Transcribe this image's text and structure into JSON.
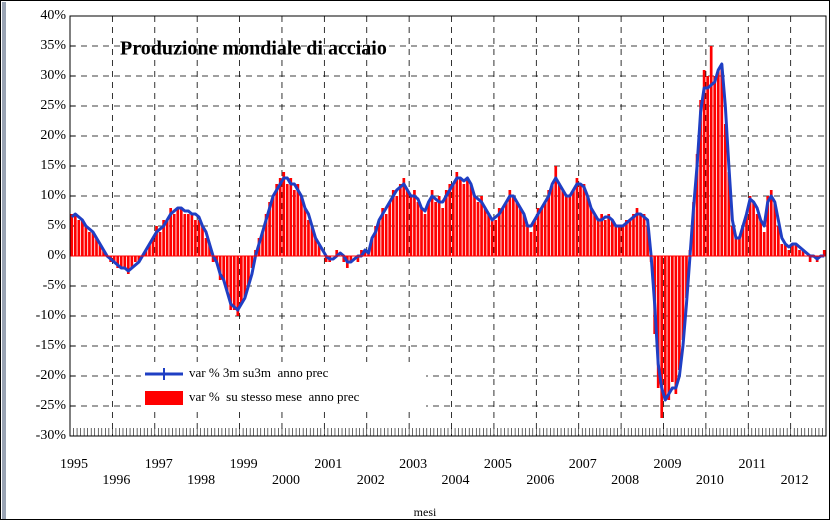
{
  "chart_data": {
    "type": "bar",
    "title": "Produzione mondiale di acciaio",
    "x_label": "mesi",
    "categories": [
      "1995",
      null,
      null,
      null,
      null,
      null,
      null,
      null,
      null,
      null,
      null,
      null,
      "1996",
      null,
      null,
      null,
      null,
      null,
      null,
      null,
      null,
      null,
      null,
      null,
      "1997",
      null,
      null,
      null,
      null,
      null,
      null,
      null,
      null,
      null,
      null,
      null,
      "1998",
      null,
      null,
      null,
      null,
      null,
      null,
      null,
      null,
      null,
      null,
      null,
      "1999",
      null,
      null,
      null,
      null,
      null,
      null,
      null,
      null,
      null,
      null,
      null,
      "2000",
      null,
      null,
      null,
      null,
      null,
      null,
      null,
      null,
      null,
      null,
      null,
      "2001",
      null,
      null,
      null,
      null,
      null,
      null,
      null,
      null,
      null,
      null,
      null,
      "2002",
      null,
      null,
      null,
      null,
      null,
      null,
      null,
      null,
      null,
      null,
      null,
      "2003",
      null,
      null,
      null,
      null,
      null,
      null,
      null,
      null,
      null,
      null,
      null,
      "2004",
      null,
      null,
      null,
      null,
      null,
      null,
      null,
      null,
      null,
      null,
      null,
      "2005",
      null,
      null,
      null,
      null,
      null,
      null,
      null,
      null,
      null,
      null,
      null,
      "2006",
      null,
      null,
      null,
      null,
      null,
      null,
      null,
      null,
      null,
      null,
      null,
      "2007",
      null,
      null,
      null,
      null,
      null,
      null,
      null,
      null,
      null,
      null,
      null,
      "2008",
      null,
      null,
      null,
      null,
      null,
      null,
      null,
      null,
      null,
      null,
      null,
      "2009",
      null,
      null,
      null,
      null,
      null,
      null,
      null,
      null,
      null,
      null,
      null,
      "2010",
      null,
      null,
      null,
      null,
      null,
      null,
      null,
      null,
      null,
      null,
      null,
      "2011",
      null,
      null,
      null,
      null,
      null,
      null,
      null,
      null,
      null,
      null,
      null,
      "2012",
      null,
      null,
      null,
      null,
      null,
      null,
      null,
      null,
      null
    ],
    "series": [
      {
        "name": "var % 3m su3m  anno prec",
        "type": "line",
        "color": "#1f3fc4",
        "values": [
          6.5,
          7,
          6.5,
          6,
          5,
          4.5,
          4,
          3,
          2,
          1,
          0,
          -0.5,
          -1,
          -1.5,
          -2,
          -2,
          -2.5,
          -2,
          -1.5,
          -1,
          0,
          1,
          2,
          3,
          4,
          4.5,
          5,
          6,
          7,
          7.5,
          8,
          8,
          7.5,
          7.5,
          7,
          7,
          6.5,
          5,
          4,
          2,
          0,
          -1,
          -3,
          -4,
          -6,
          -8,
          -8.5,
          -9,
          -8,
          -7,
          -5,
          -3,
          0,
          2,
          4,
          6,
          8,
          10,
          11,
          12,
          13,
          13,
          12,
          12,
          11,
          10,
          8,
          7,
          5,
          3,
          2,
          1,
          0,
          -0.5,
          -0.5,
          0,
          0.5,
          0,
          -1,
          -1,
          -0.5,
          0,
          0,
          1,
          0.5,
          3,
          4,
          6,
          7,
          8,
          9,
          10,
          11,
          11.5,
          12,
          11,
          10,
          10,
          9.5,
          8,
          7.5,
          9,
          10,
          9.5,
          9,
          9,
          10,
          11,
          12,
          13,
          13,
          12.5,
          13,
          12,
          10,
          9.5,
          9,
          8,
          7,
          6,
          6.5,
          7,
          8,
          9,
          10,
          10,
          9,
          8,
          7,
          5,
          5,
          6,
          7,
          8,
          9,
          10,
          12,
          13,
          12,
          11,
          10,
          10,
          11,
          12,
          12,
          11.5,
          10,
          8,
          7,
          6,
          6,
          6.5,
          6.5,
          6,
          5,
          5,
          5,
          5.5,
          6,
          6.5,
          7,
          7,
          6.5,
          6,
          0,
          -8,
          -18,
          -22,
          -24,
          -23,
          -22,
          -22,
          -20,
          -15,
          -8,
          0,
          8,
          15,
          24,
          28,
          28,
          28.5,
          29,
          31,
          32,
          25,
          15,
          6,
          3,
          3,
          5,
          7,
          9.5,
          9,
          8,
          6,
          5,
          9,
          10,
          9,
          6,
          3,
          2,
          1.5,
          2,
          2,
          1.5,
          1,
          0.5,
          0,
          0,
          -0.5,
          0,
          0
        ]
      },
      {
        "name": "var %  su stesso mese  anno prec",
        "type": "bar",
        "color": "#ff0000",
        "values": [
          7,
          7,
          6,
          6,
          5,
          4,
          4,
          3,
          2,
          1,
          0,
          -1,
          -1,
          -2,
          -2,
          -2,
          -3,
          -2,
          -1,
          -1,
          0,
          1,
          2,
          3,
          5,
          4,
          6,
          6,
          8,
          7,
          8,
          8,
          7,
          7,
          7,
          6,
          6,
          5,
          3,
          2,
          -1,
          -1,
          -4,
          -4,
          -6,
          -9,
          -9,
          -10,
          -8,
          -7,
          -5,
          -2,
          1,
          3,
          4,
          7,
          9,
          10,
          12,
          13,
          14,
          12,
          13,
          11,
          12,
          10,
          8,
          6,
          5,
          3,
          2,
          0,
          -1,
          -1,
          0,
          1,
          0,
          -1,
          -2,
          -1,
          0,
          -1,
          1,
          1,
          1,
          3,
          5,
          6,
          8,
          7,
          9,
          11,
          10,
          12,
          13,
          11,
          10,
          11,
          9,
          8,
          7,
          9,
          11,
          9,
          10,
          8,
          11,
          12,
          12,
          14,
          13,
          12,
          13,
          12,
          10,
          9,
          10,
          8,
          7,
          6,
          6,
          8,
          8,
          9,
          11,
          10,
          9,
          8,
          7,
          5,
          4,
          6,
          8,
          8,
          9,
          11,
          12,
          15,
          12,
          11,
          10,
          10,
          11,
          13,
          12,
          12,
          10,
          8,
          7,
          6,
          7,
          6,
          7,
          6,
          5,
          5,
          5,
          6,
          6,
          7,
          8,
          7,
          7,
          5,
          -1,
          -13,
          -22,
          -27,
          -24,
          -24,
          -21,
          -23,
          -19,
          -14,
          -7,
          1,
          9,
          17,
          26,
          31,
          30,
          35,
          30,
          31,
          32,
          22,
          14,
          5,
          3,
          3,
          5,
          7,
          10,
          9,
          7,
          6,
          4,
          10,
          11,
          9,
          5,
          2,
          2,
          1,
          2,
          2,
          1,
          1,
          0,
          -1,
          0,
          -1,
          0,
          1
        ]
      }
    ],
    "ylim": [
      -30,
      40
    ],
    "yticks": [
      {
        "value": -30,
        "label": "-30%"
      },
      {
        "value": -25,
        "label": "-25%"
      },
      {
        "value": -20,
        "label": "-20%"
      },
      {
        "value": -15,
        "label": "-15%"
      },
      {
        "value": -10,
        "label": "-10%"
      },
      {
        "value": -5,
        "label": "-5%"
      },
      {
        "value": 0,
        "label": "0%"
      },
      {
        "value": 5,
        "label": "5%"
      },
      {
        "value": 10,
        "label": "10%"
      },
      {
        "value": 15,
        "label": "15%"
      },
      {
        "value": 20,
        "label": "20%"
      },
      {
        "value": 25,
        "label": "25%"
      },
      {
        "value": 30,
        "label": "30%"
      },
      {
        "value": 35,
        "label": "35%"
      },
      {
        "value": 40,
        "label": "40%"
      }
    ],
    "grid": true,
    "legend": "lower-left"
  }
}
